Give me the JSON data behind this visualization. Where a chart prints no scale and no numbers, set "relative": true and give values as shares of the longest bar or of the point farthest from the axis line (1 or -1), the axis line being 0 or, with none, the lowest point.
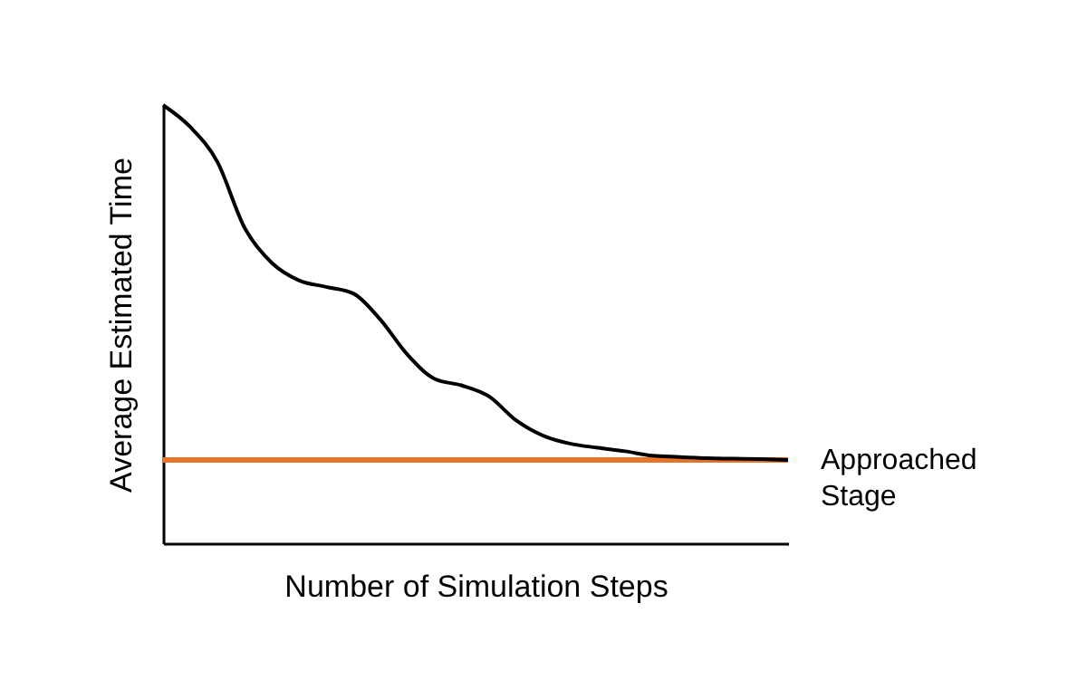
{
  "chart_data": {
    "type": "line",
    "relative": true,
    "xlabel": "Number of Simulation Steps",
    "ylabel": "Average Estimated Time",
    "grid": false,
    "marker": "none",
    "line_style": "solid",
    "categories": [
      null,
      null,
      null,
      null,
      null,
      null,
      null,
      null,
      null,
      null,
      null,
      null,
      null,
      null,
      null,
      null,
      null,
      null,
      null,
      null,
      null,
      null,
      null,
      null
    ],
    "series": [
      {
        "color": "#000000",
        "values": [
          1.0,
          0.95,
          0.87,
          0.72,
          0.64,
          0.6,
          0.585,
          0.57,
          0.51,
          0.43,
          0.375,
          0.36,
          0.335,
          0.28,
          0.245,
          0.227,
          0.218,
          0.21,
          0.2,
          0.197,
          0.194,
          0.193,
          0.192,
          0.19
        ]
      }
    ],
    "ref_lines": [
      {
        "axis": "y",
        "value": 0.19,
        "label": "Approached Stage",
        "color": "#e8732a",
        "line_style": "solid"
      }
    ]
  }
}
